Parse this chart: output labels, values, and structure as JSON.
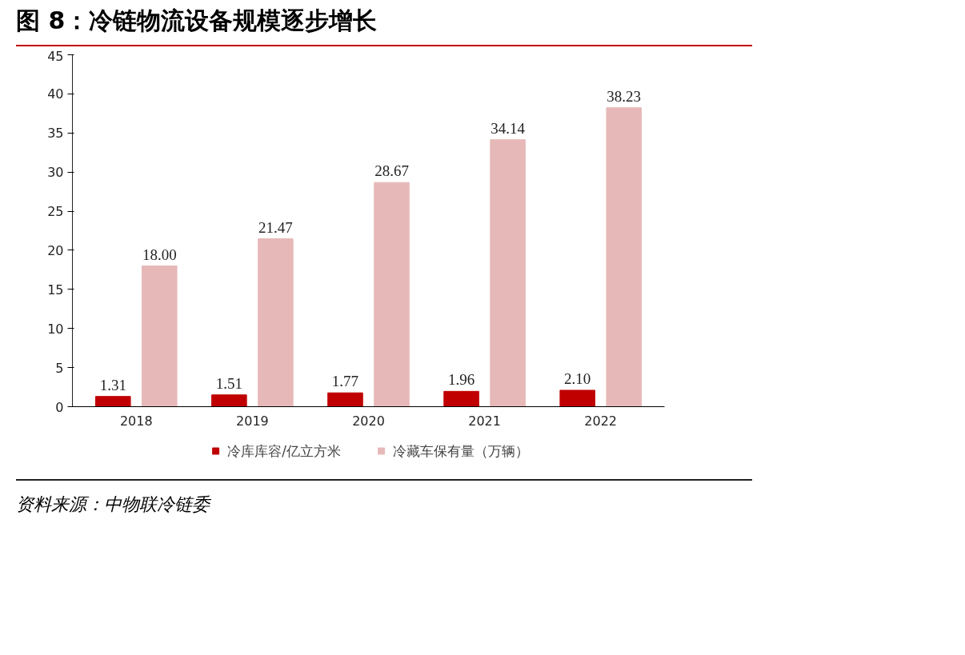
{
  "chart_data": {
    "type": "bar",
    "title": "图 8：冷链物流设备规模逐步增长",
    "categories": [
      "2018",
      "2019",
      "2020",
      "2021",
      "2022"
    ],
    "series": [
      {
        "name": "冷库库容/亿立方米",
        "color": "#c00000",
        "values": [
          1.31,
          1.51,
          1.77,
          1.96,
          2.1
        ],
        "value_labels": [
          "1.31",
          "1.51",
          "1.77",
          "1.96",
          "2.10"
        ]
      },
      {
        "name": "冷藏车保有量（万辆）",
        "color": "#e6b9b8",
        "values": [
          18.0,
          21.47,
          28.67,
          34.14,
          38.23
        ],
        "value_labels": [
          "18.00",
          "21.47",
          "28.67",
          "34.14",
          "38.23"
        ]
      }
    ],
    "ylim": [
      0,
      45
    ],
    "yticks": [
      0,
      5,
      10,
      15,
      20,
      25,
      30,
      35,
      40,
      45
    ],
    "grid": false,
    "legend": "bottom",
    "annotations": [
      "资料来源：中物联冷链委"
    ]
  }
}
